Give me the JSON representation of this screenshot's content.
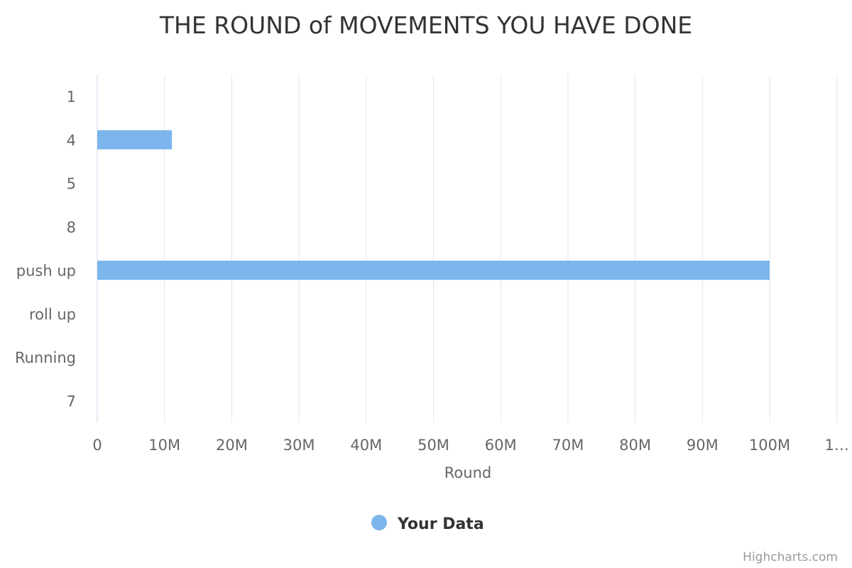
{
  "chart_data": {
    "type": "bar",
    "orientation": "horizontal",
    "title": "THE ROUND of MOVEMENTS YOU HAVE DONE",
    "categories": [
      "1",
      "4",
      "5",
      "8",
      "push up",
      "roll up",
      "Running",
      "7"
    ],
    "series": [
      {
        "name": "Your Data",
        "color": "#7cb5ec",
        "values": [
          0,
          11100000,
          0,
          0,
          100000000,
          0,
          0,
          0
        ]
      }
    ],
    "xlabel": "Round",
    "xlim": [
      0,
      110000000
    ],
    "xticks": [
      "0",
      "10M",
      "20M",
      "30M",
      "40M",
      "50M",
      "60M",
      "70M",
      "80M",
      "90M",
      "100M",
      "1…"
    ],
    "grid": true,
    "legend": "bottom-center"
  },
  "credits": "Highcharts.com",
  "colors": {
    "grid": "#e6e6e6",
    "axis_line": "#ccd6eb",
    "bar": "#7cb5ec"
  }
}
